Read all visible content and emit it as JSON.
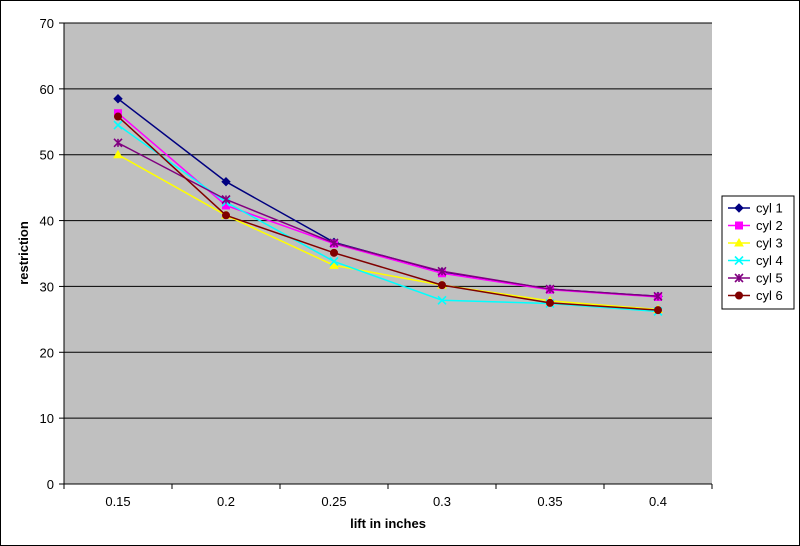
{
  "chart_data": {
    "type": "line",
    "title": "",
    "xlabel": "lift in inches",
    "ylabel": "restriction",
    "categories": [
      "0.15",
      "0.2",
      "0.25",
      "0.3",
      "0.35",
      "0.4"
    ],
    "ylim": [
      0,
      70
    ],
    "ytick_step": 10,
    "grid": true,
    "legend_position": "right",
    "plot_background": "#c0c0c0",
    "series": [
      {
        "name": "cyl 1",
        "color": "#000080",
        "marker": "diamond",
        "values": [
          58.5,
          45.9,
          36.7,
          32.2,
          29.6,
          28.5
        ]
      },
      {
        "name": "cyl 2",
        "color": "#ff00ff",
        "marker": "square",
        "values": [
          56.3,
          42.3,
          36.5,
          32.0,
          29.5,
          28.4
        ]
      },
      {
        "name": "cyl 3",
        "color": "#ffff00",
        "marker": "triangle",
        "values": [
          50.0,
          40.8,
          33.2,
          30.2,
          27.8,
          26.5
        ]
      },
      {
        "name": "cyl 4",
        "color": "#00ffff",
        "marker": "x",
        "values": [
          54.5,
          42.8,
          33.8,
          27.9,
          27.4,
          26.2
        ]
      },
      {
        "name": "cyl 5",
        "color": "#800080",
        "marker": "star",
        "values": [
          51.8,
          43.2,
          36.6,
          32.3,
          29.6,
          28.5
        ]
      },
      {
        "name": "cyl 6",
        "color": "#800000",
        "marker": "circle",
        "values": [
          55.8,
          40.8,
          35.1,
          30.2,
          27.5,
          26.4
        ]
      }
    ]
  }
}
